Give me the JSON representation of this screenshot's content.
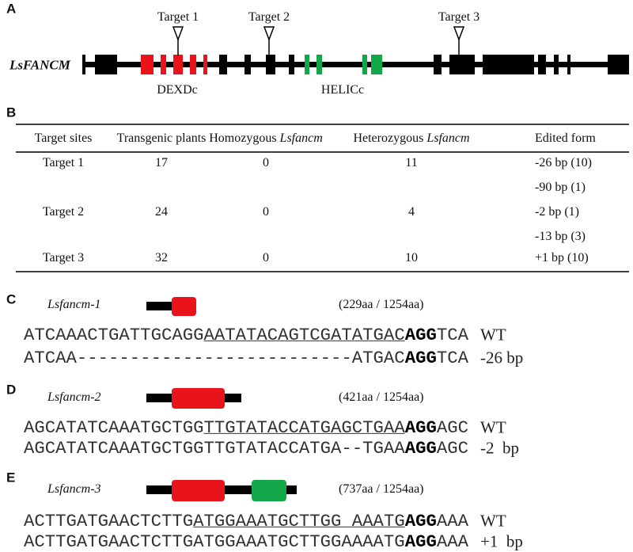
{
  "panel_a": {
    "letter": "A",
    "gene": "LsFANCM",
    "targets": [
      "Target 1",
      "Target 2",
      "Target 3"
    ],
    "domains": [
      "DEXDc",
      "HELICc"
    ]
  },
  "panel_b": {
    "letter": "B",
    "table": {
      "header": [
        {
          "text": "Target sites"
        },
        {
          "text": "Transgenic plants"
        },
        {
          "text": "Homozygous",
          "italic": "Lsfancm"
        },
        {
          "text": "Heterozygous",
          "italic": "Lsfancm"
        },
        {
          "text": "Edited form"
        }
      ],
      "rows": [
        {
          "site": "Target 1",
          "transgenic": 17,
          "homozygous": 0,
          "heterozygous": 11,
          "edited": [
            "-26 bp (10)",
            "-90 bp (1)"
          ]
        },
        {
          "site": "Target 2",
          "transgenic": 24,
          "homozygous": 0,
          "heterozygous": 4,
          "edited": [
            "-2 bp (1)",
            "-13 bp (3)"
          ]
        },
        {
          "site": "Target 3",
          "transgenic": 32,
          "homozygous": 0,
          "heterozygous": 10,
          "edited": [
            "+1 bp (10)"
          ]
        }
      ]
    }
  },
  "alleles": [
    {
      "letter": "C",
      "name": "Lsfancm-1",
      "protein": "(229aa / 1254aa)",
      "wt": {
        "prefix": "ATCAAACTGATTGCAGG",
        "target": "AATATACAGTCGATATGAC",
        "pam": "AGG",
        "suffix": "TCA",
        "label": "WT"
      },
      "mutant": {
        "sequence": "ATCAA--------------------------ATGAC",
        "pam": "AGG",
        "suffix": "TCA",
        "label": "-26 bp"
      }
    },
    {
      "letter": "D",
      "name": "Lsfancm-2",
      "protein": "(421aa / 1254aa)",
      "wt": {
        "prefix": "AGCATATCAAATGCTGG",
        "target": "TTGTATACCATGAGCTGAA",
        "pam": "AGG",
        "suffix": "AGC",
        "label": "WT"
      },
      "mutant": {
        "sequence": "AGCATATCAAATGCTGGTTGTATACCATGA--TGAA",
        "pam": "AGG",
        "suffix": "AGC",
        "label": "-2  bp"
      }
    },
    {
      "letter": "E",
      "name": "Lsfancm-3",
      "protein": "(737aa / 1254aa)",
      "wt": {
        "prefix": "ACTTGATGAACTCTTG",
        "target": "ATGGAAATGCTTGG AAATG",
        "pam": "AGG",
        "suffix": "AAA",
        "label": "WT"
      },
      "mutant": {
        "sequence": "ACTTGATGAACTCTTGATGGAAATGCTTGGAAAATG",
        "pam": "AGG",
        "suffix": "AAA",
        "label": "+1  bp"
      }
    }
  ]
}
